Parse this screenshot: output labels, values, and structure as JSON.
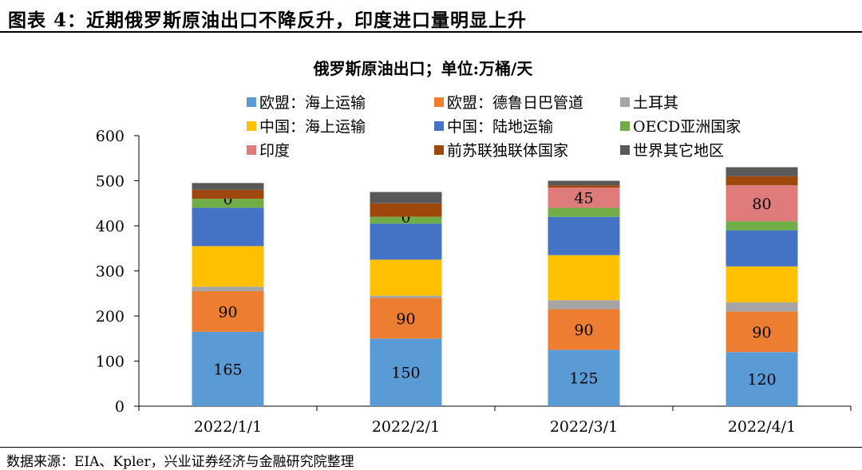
{
  "figure": {
    "title": "图表 4：近期俄罗斯原油出口不降反升，印度进口量明显上升",
    "source": "数据来源：EIA、Kpler，兴业证券经济与金融研究院整理"
  },
  "chart_data": {
    "type": "bar",
    "stacked": true,
    "title": "俄罗斯原油出口；单位:万桶/天",
    "categories": [
      "2022/1/1",
      "2022/2/1",
      "2022/3/1",
      "2022/4/1"
    ],
    "ylim": [
      0,
      600
    ],
    "yticks": [
      "0",
      "100",
      "200",
      "300",
      "400",
      "500",
      "600"
    ],
    "legend_position": "top",
    "series": [
      {
        "name": "欧盟：海上运输",
        "color": "#5B9BD5",
        "values": [
          165,
          150,
          125,
          120
        ],
        "labels": [
          "165",
          "150",
          "125",
          "120"
        ]
      },
      {
        "name": "欧盟：德鲁日巴管道",
        "color": "#ED7D31",
        "values": [
          90,
          90,
          90,
          90
        ],
        "labels": [
          "90",
          "90",
          "90",
          "90"
        ]
      },
      {
        "name": "土耳其",
        "color": "#A5A5A5",
        "values": [
          10,
          5,
          20,
          20
        ],
        "labels": []
      },
      {
        "name": "中国：海上运输",
        "color": "#FFC000",
        "values": [
          90,
          80,
          100,
          80
        ],
        "labels": []
      },
      {
        "name": "中国：陆地运输",
        "color": "#4472C4",
        "values": [
          85,
          80,
          85,
          80
        ],
        "labels": []
      },
      {
        "name": "OECD亚洲国家",
        "color": "#70AD47",
        "values": [
          20,
          15,
          20,
          20
        ],
        "labels": []
      },
      {
        "name": "印度",
        "color": "#E07B7B",
        "values": [
          0,
          0,
          45,
          80
        ],
        "labels": [
          "0",
          "0",
          "45",
          "80"
        ]
      },
      {
        "name": "前苏联独联体国家",
        "color": "#9E480E",
        "values": [
          20,
          30,
          5,
          20
        ],
        "labels": []
      },
      {
        "name": "世界其它地区",
        "color": "#595959",
        "values": [
          15,
          25,
          10,
          20
        ],
        "labels": []
      }
    ]
  }
}
